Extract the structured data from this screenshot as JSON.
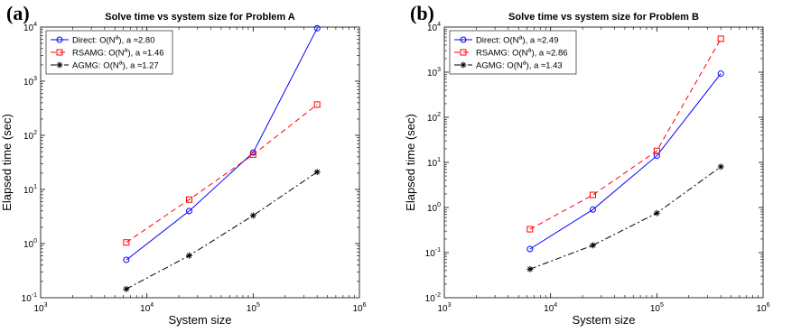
{
  "chart_data": [
    {
      "type": "line",
      "panel_label": "(a)",
      "title": "Solve time vs system size for Problem A",
      "xlabel": "System size",
      "ylabel": "Elapsed time (sec)",
      "xscale": "log",
      "yscale": "log",
      "xlim": [
        1000,
        1000000
      ],
      "ylim": [
        0.1,
        10000
      ],
      "xticks": [
        "10^3",
        "10^4",
        "10^5",
        "10^6"
      ],
      "yticks": [
        "10^-1",
        "10^0",
        "10^1",
        "10^2",
        "10^3",
        "10^4"
      ],
      "legend_position": "top-left",
      "series": [
        {
          "name": "Direct: O(N^a), a ≈2.80",
          "color": "#0000ff",
          "dash": "solid",
          "marker": "circle",
          "x": [
            6400,
            25000,
            100000,
            400000
          ],
          "y": [
            0.5,
            4.0,
            48,
            9500
          ]
        },
        {
          "name": "RSAMG: O(N^a), a ≈1.46",
          "color": "#ff0000",
          "dash": "dashed",
          "marker": "square",
          "x": [
            6400,
            25000,
            100000,
            400000
          ],
          "y": [
            1.05,
            6.5,
            44,
            370
          ]
        },
        {
          "name": "AGMG: O(N^a), a ≈1.27",
          "color": "#000000",
          "dash": "dashdot",
          "marker": "asterisk",
          "x": [
            6400,
            25000,
            100000,
            400000
          ],
          "y": [
            0.145,
            0.6,
            3.3,
            21
          ]
        }
      ]
    },
    {
      "type": "line",
      "panel_label": "(b)",
      "title": "Solve time vs system size for Problem B",
      "xlabel": "System size",
      "ylabel": "Elapsed time (sec)",
      "xscale": "log",
      "yscale": "log",
      "xlim": [
        1000,
        1000000
      ],
      "ylim": [
        0.01,
        10000
      ],
      "xticks": [
        "10^3",
        "10^4",
        "10^5",
        "10^6"
      ],
      "yticks": [
        "10^-2",
        "10^-1",
        "10^0",
        "10^1",
        "10^2",
        "10^3",
        "10^4"
      ],
      "legend_position": "top-left",
      "series": [
        {
          "name": "Direct: O(N^a), a ≈2.49",
          "color": "#0000ff",
          "dash": "solid",
          "marker": "circle",
          "x": [
            6400,
            25000,
            100000,
            400000
          ],
          "y": [
            0.12,
            0.9,
            14,
            930
          ]
        },
        {
          "name": "RSAMG: O(N^a), a ≈2.86",
          "color": "#ff0000",
          "dash": "dashed",
          "marker": "square",
          "x": [
            6400,
            25000,
            100000,
            400000
          ],
          "y": [
            0.33,
            1.9,
            18,
            5500
          ]
        },
        {
          "name": "AGMG: O(N^a), a ≈1.43",
          "color": "#000000",
          "dash": "dashdot",
          "marker": "asterisk",
          "x": [
            6400,
            25000,
            100000,
            400000
          ],
          "y": [
            0.043,
            0.145,
            0.75,
            8
          ]
        }
      ]
    }
  ]
}
